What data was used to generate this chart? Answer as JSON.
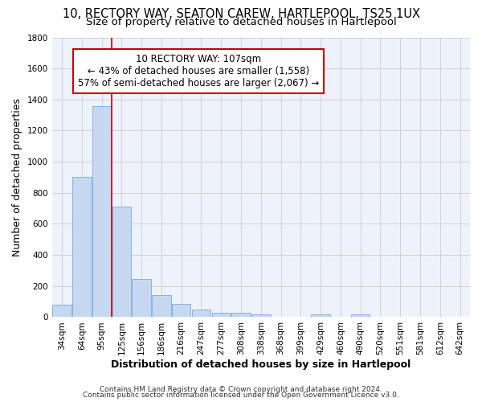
{
  "title": "10, RECTORY WAY, SEATON CAREW, HARTLEPOOL, TS25 1UX",
  "subtitle": "Size of property relative to detached houses in Hartlepool",
  "xlabel": "Distribution of detached houses by size in Hartlepool",
  "ylabel": "Number of detached properties",
  "categories": [
    "34sqm",
    "64sqm",
    "95sqm",
    "125sqm",
    "156sqm",
    "186sqm",
    "216sqm",
    "247sqm",
    "277sqm",
    "308sqm",
    "338sqm",
    "368sqm",
    "399sqm",
    "429sqm",
    "460sqm",
    "490sqm",
    "520sqm",
    "551sqm",
    "581sqm",
    "612sqm",
    "642sqm"
  ],
  "values": [
    80,
    905,
    1360,
    710,
    245,
    140,
    85,
    50,
    30,
    30,
    18,
    0,
    0,
    20,
    0,
    18,
    0,
    0,
    0,
    0,
    0
  ],
  "bar_color": "#c5d8f0",
  "bar_edge_color": "#7aabe0",
  "property_line_label": "10 RECTORY WAY: 107sqm",
  "annotation_line1": "← 43% of detached houses are smaller (1,558)",
  "annotation_line2": "57% of semi-detached houses are larger (2,067) →",
  "annotation_box_color": "#cc0000",
  "vline_color": "#cc0000",
  "vline_x": 2.5,
  "ylim": [
    0,
    1800
  ],
  "yticks": [
    0,
    200,
    400,
    600,
    800,
    1000,
    1200,
    1400,
    1600,
    1800
  ],
  "grid_color": "#cccccc",
  "bg_color": "#eef2fb",
  "footer1": "Contains HM Land Registry data © Crown copyright and database right 2024.",
  "footer2": "Contains public sector information licensed under the Open Government Licence v3.0.",
  "title_fontsize": 10.5,
  "subtitle_fontsize": 9.5,
  "axis_label_fontsize": 9,
  "tick_fontsize": 7.5,
  "footer_fontsize": 6.5,
  "annot_fontsize": 8.5
}
